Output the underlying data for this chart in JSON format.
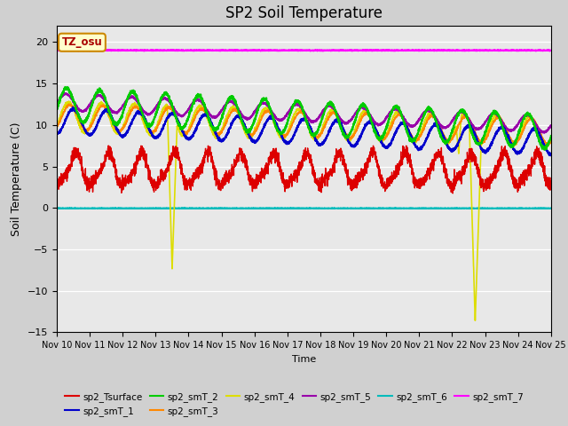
{
  "title": "SP2 Soil Temperature",
  "xlabel": "Time",
  "ylabel": "Soil Temperature (C)",
  "ylim": [
    -15,
    22
  ],
  "yticks": [
    -15,
    -10,
    -5,
    0,
    5,
    10,
    15,
    20
  ],
  "x_start": 0,
  "x_end": 15,
  "n_points": 3600,
  "bg_outer": "#d0d0d0",
  "bg_plot": "#e8e8e8",
  "annotation_text": "TZ_osu",
  "colors": {
    "sp2_Tsurface": "#dd0000",
    "sp2_smT_1": "#0000cc",
    "sp2_smT_2": "#00cc00",
    "sp2_smT_3": "#ff8800",
    "sp2_smT_4": "#dddd00",
    "sp2_smT_5": "#9900aa",
    "sp2_smT_6": "#00bbbb",
    "sp2_smT_7": "#ff00ff"
  },
  "xtick_labels": [
    "Nov 10",
    "Nov 11",
    "Nov 12",
    "Nov 13",
    "Nov 14",
    "Nov 15",
    "Nov 16",
    "Nov 17",
    "Nov 18",
    "Nov 19",
    "Nov 20",
    "Nov 21",
    "Nov 22",
    "Nov 23",
    "Nov 24",
    "Nov 25"
  ],
  "xtick_positions": [
    0,
    1,
    2,
    3,
    4,
    5,
    6,
    7,
    8,
    9,
    10,
    11,
    12,
    13,
    14,
    15
  ]
}
